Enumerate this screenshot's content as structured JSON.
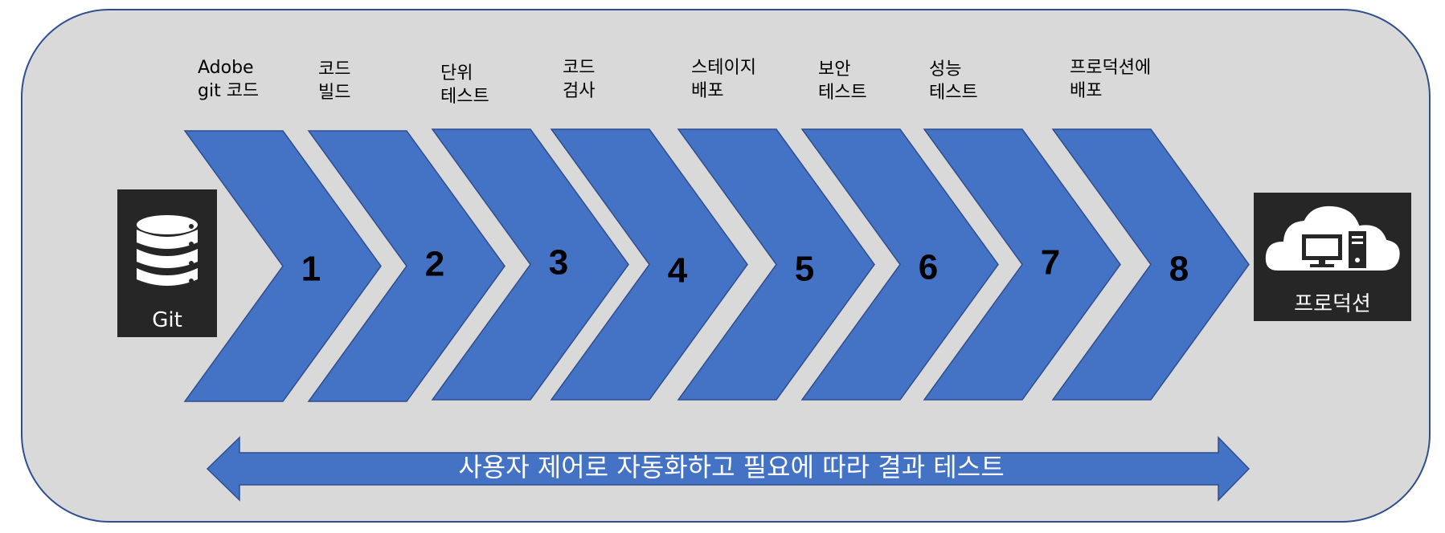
{
  "source": {
    "label": "Git",
    "icon": "database-icon"
  },
  "target": {
    "label": "프로덕션",
    "icon": "cloud-computer-icon"
  },
  "steps": [
    {
      "number": "1",
      "line1": "Adobe",
      "line2": "git 코드"
    },
    {
      "number": "2",
      "line1": "코드",
      "line2": "빌드"
    },
    {
      "number": "3",
      "line1": "단위",
      "line2": "테스트"
    },
    {
      "number": "4",
      "line1": "코드",
      "line2": "검사"
    },
    {
      "number": "5",
      "line1": "스테이지",
      "line2": "배포"
    },
    {
      "number": "6",
      "line1": "보안",
      "line2": "테스트"
    },
    {
      "number": "7",
      "line1": "성능",
      "line2": "테스트"
    },
    {
      "number": "8",
      "line1": "프로덕션에",
      "line2": "배포"
    }
  ],
  "bottom_arrow_text": "사용자 제어로 자동화하고 필요에 따라 결과 테스트",
  "colors": {
    "panel": "#d9d9d9",
    "chevron": "#4472c4",
    "icon_box": "#262626",
    "border": "#2f4e8f"
  }
}
